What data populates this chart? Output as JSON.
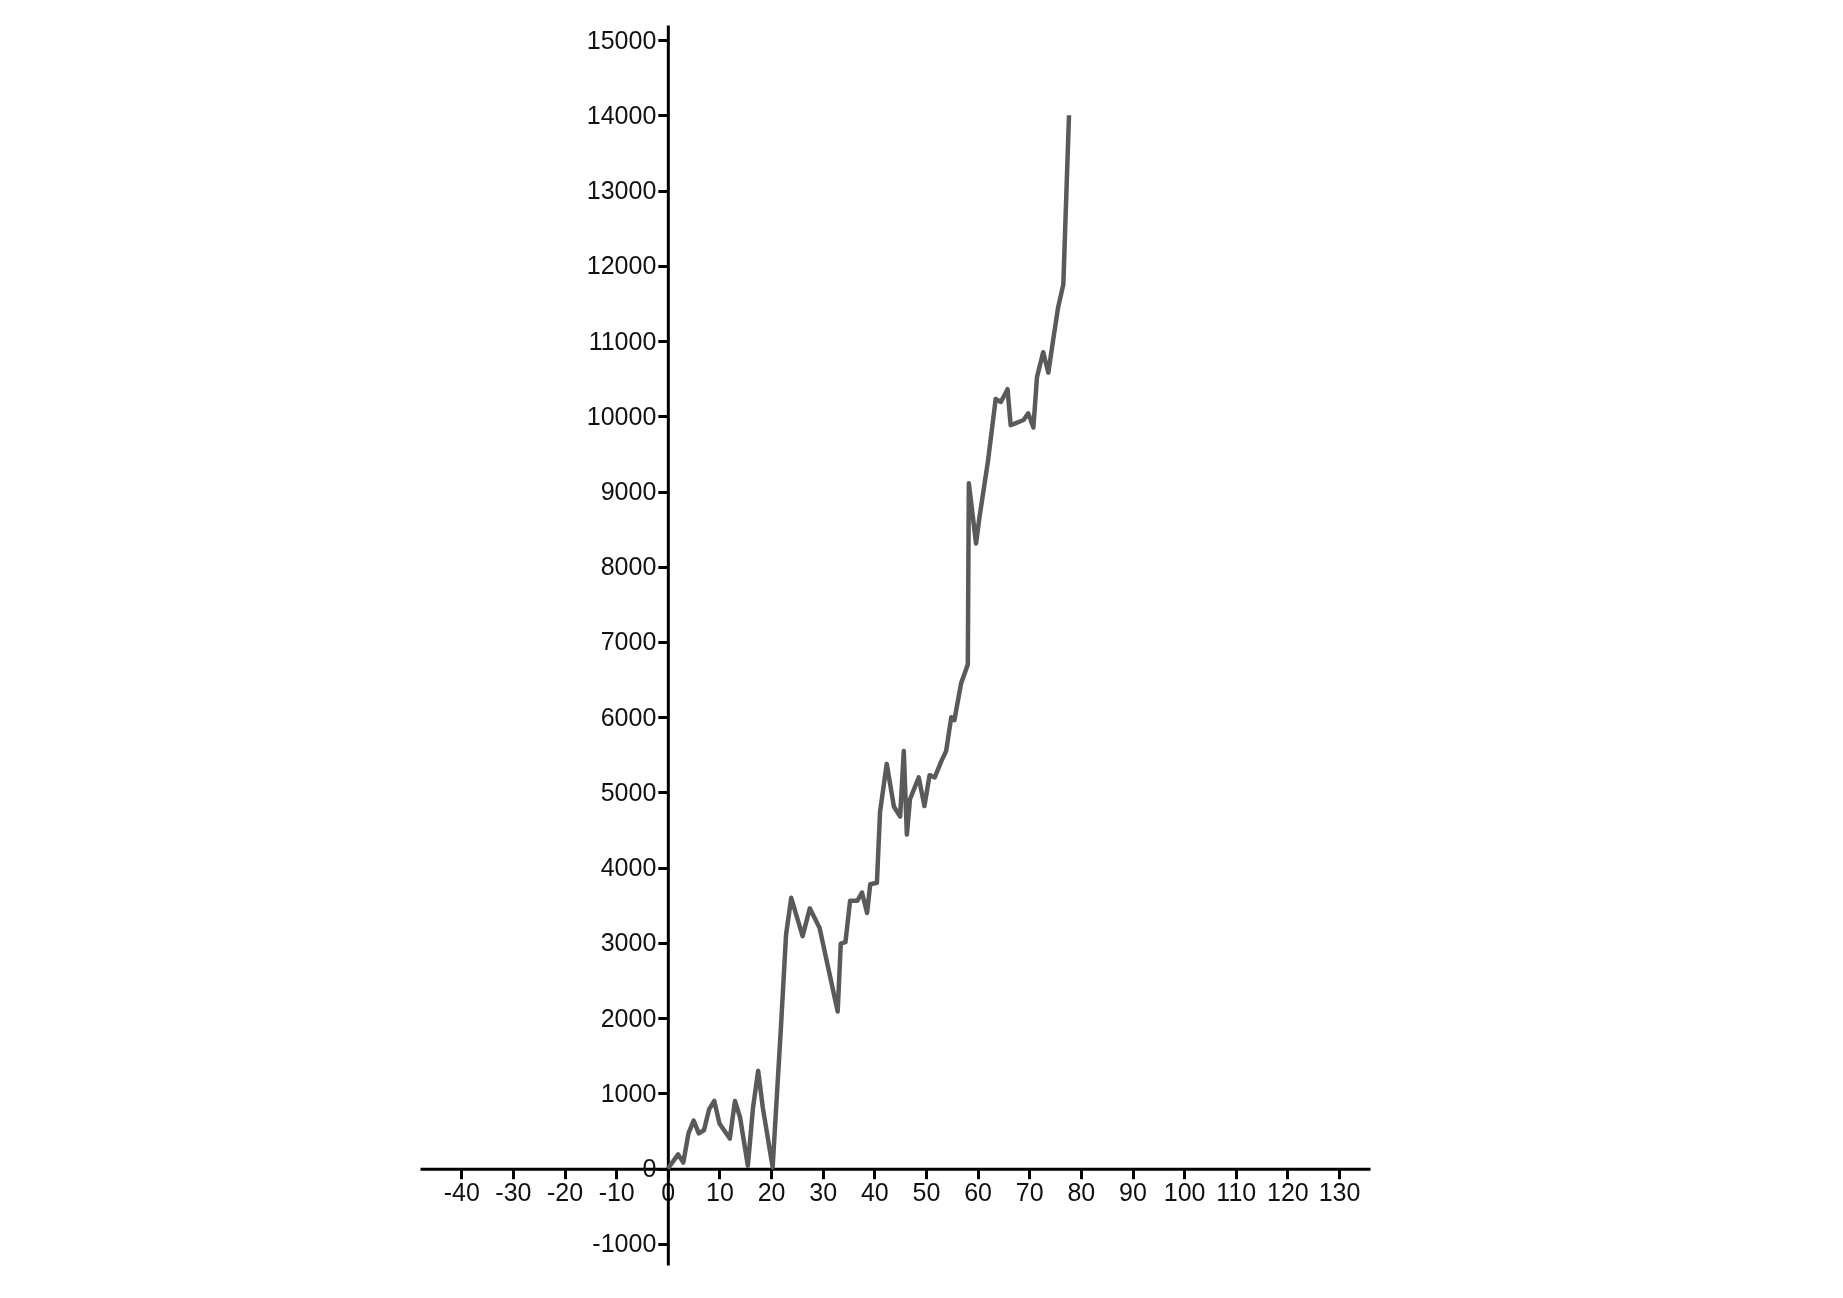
{
  "chart_data": {
    "type": "line",
    "x": [
      0,
      2,
      3,
      4,
      5,
      6,
      7,
      8,
      9,
      10,
      12,
      13,
      14,
      15.5,
      16.5,
      17.5,
      18.4,
      20.3,
      21.9,
      22.9,
      23.9,
      26.1,
      27.5,
      29.4,
      31,
      32.9,
      33.5,
      34.4,
      35.3,
      36.7,
      37.6,
      38.6,
      39.2,
      40.5,
      41.1,
      42.4,
      43.8,
      45,
      45.7,
      46.3,
      46.9,
      48.6,
      49.7,
      50.7,
      51.7,
      53,
      53.9,
      54.9,
      55.5,
      56.8,
      58.1,
      58.3,
      59.7,
      60.3,
      62,
      63.5,
      64.5,
      65.8,
      66.4,
      68.9,
      69.8,
      70.8,
      71.5,
      72.7,
      73.7,
      74.6,
      75.6,
      76.6,
      77.7
    ],
    "series": [
      {
        "color": "#5a5a5a",
        "values": [
          0,
          190,
          80,
          470,
          640,
          470,
          510,
          790,
          900,
          600,
          400,
          900,
          680,
          40,
          810,
          1300,
          810,
          20,
          1870,
          3110,
          3600,
          3090,
          3460,
          3200,
          2690,
          2090,
          2990,
          3010,
          3560,
          3560,
          3670,
          3400,
          3780,
          3800,
          4740,
          5380,
          4810,
          4680,
          5550,
          4440,
          4910,
          5200,
          4820,
          5230,
          5200,
          5420,
          5550,
          6000,
          5960,
          6450,
          6700,
          9110,
          8310,
          8630,
          9400,
          10230,
          10190,
          10360,
          9880,
          9950,
          10040,
          9850,
          10520,
          10850,
          10580,
          11000,
          11450,
          11750,
          14000
        ]
      }
    ],
    "xlim": [
      -48,
      136
    ],
    "xticks": [
      -40,
      -30,
      -20,
      -10,
      0,
      10,
      20,
      30,
      40,
      50,
      60,
      70,
      80,
      90,
      100,
      110,
      120,
      130
    ],
    "ylim": [
      -1280,
      15200
    ],
    "yticks": [
      -1000,
      0,
      1000,
      2000,
      3000,
      4000,
      5000,
      6000,
      7000,
      8000,
      9000,
      10000,
      11000,
      12000,
      13000,
      14000,
      15000
    ],
    "grid": false,
    "legend": false,
    "marker": "none",
    "line_style": "solid"
  }
}
